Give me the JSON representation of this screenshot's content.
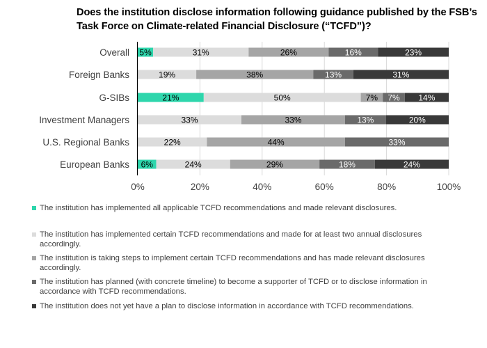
{
  "chart_data": {
    "type": "bar",
    "orientation": "horizontal",
    "stacked": true,
    "title": "Does the institution disclose information following guidance published by the FSB’s Task Force on Climate-related Financial Disclosure (“TCFD”)?",
    "categories": [
      "Overall",
      "Foreign Banks",
      "G-SIBs",
      "Investment Managers",
      "U.S. Regional Banks",
      "European Banks"
    ],
    "series": [
      {
        "name": "The institution has implemented all applicable TCFD recommendations and made relevant disclosures.",
        "color": "#2ed6ac",
        "label_color": "#000000",
        "values": [
          5,
          0,
          21,
          0,
          0,
          6
        ]
      },
      {
        "name": "The institution has implemented certain TCFD recommendations and made for at least two annual disclosures accordingly.",
        "color": "#dcdcdc",
        "label_color": "#000000",
        "values": [
          31,
          19,
          50,
          33,
          22,
          24
        ]
      },
      {
        "name": "The institution is taking steps to implement certain TCFD recommendations and has made relevant disclosures accordingly.",
        "color": "#a5a5a5",
        "label_color": "#000000",
        "values": [
          26,
          38,
          7,
          33,
          44,
          29
        ]
      },
      {
        "name": "The institution has planned (with concrete timeline) to become a supporter of TCFD or to disclose information in accordance with TCFD recommendations.",
        "color": "#6a6a6a",
        "label_color": "#ffffff",
        "values": [
          16,
          13,
          7,
          13,
          33,
          18
        ]
      },
      {
        "name": "The institution does not yet have a plan to disclose information in accordance with TCFD recommendations.",
        "color": "#393939",
        "label_color": "#ffffff",
        "values": [
          23,
          31,
          14,
          20,
          0,
          24
        ]
      }
    ],
    "xlim": [
      0,
      100
    ],
    "x_ticks": [
      "0%",
      "20%",
      "40%",
      "60%",
      "80%",
      "100%"
    ],
    "grid": true,
    "legend_position": "bottom",
    "value_suffix": "%"
  }
}
